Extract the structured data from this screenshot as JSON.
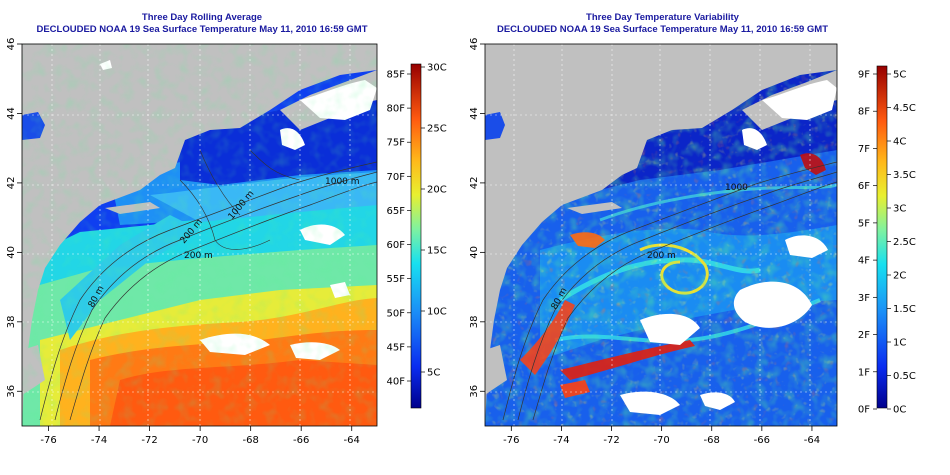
{
  "panels": [
    {
      "title": "Three Day Rolling Average",
      "subtitle": "DECLOUDED NOAA 19 Sea Surface Temperature May 11, 2010 16:59 GMT",
      "colorbar": {
        "f_labels": [
          "85F",
          "80F",
          "75F",
          "70F",
          "65F",
          "60F",
          "55F",
          "50F",
          "45F",
          "40F"
        ],
        "c_labels": [
          "30C",
          "25C",
          "20C",
          "15C",
          "10C",
          "5C"
        ]
      },
      "contour_labels": [
        "80 m",
        "200 m",
        "1000 m",
        "200 m",
        "1000 m"
      ]
    },
    {
      "title": "Three Day Temperature Variability",
      "subtitle": "DECLOUDED NOAA 19 Sea Surface Temperature May 11, 2010 16:59 GMT",
      "colorbar": {
        "f_labels": [
          "9F",
          "8F",
          "7F",
          "6F",
          "5F",
          "4F",
          "3F",
          "2F",
          "1F",
          "0F"
        ],
        "c_labels": [
          "5C",
          "4.5C",
          "4C",
          "3.5C",
          "3C",
          "2.5C",
          "2C",
          "1.5C",
          "1C",
          "0.5C",
          "0C"
        ]
      },
      "contour_labels": [
        "80 m",
        "200 m",
        "1000"
      ]
    }
  ],
  "axes": {
    "x_ticks": [
      "-76",
      "-74",
      "-72",
      "-70",
      "-68",
      "-66",
      "-64"
    ],
    "y_ticks": [
      "36",
      "38",
      "40",
      "42",
      "44",
      "46"
    ]
  }
}
